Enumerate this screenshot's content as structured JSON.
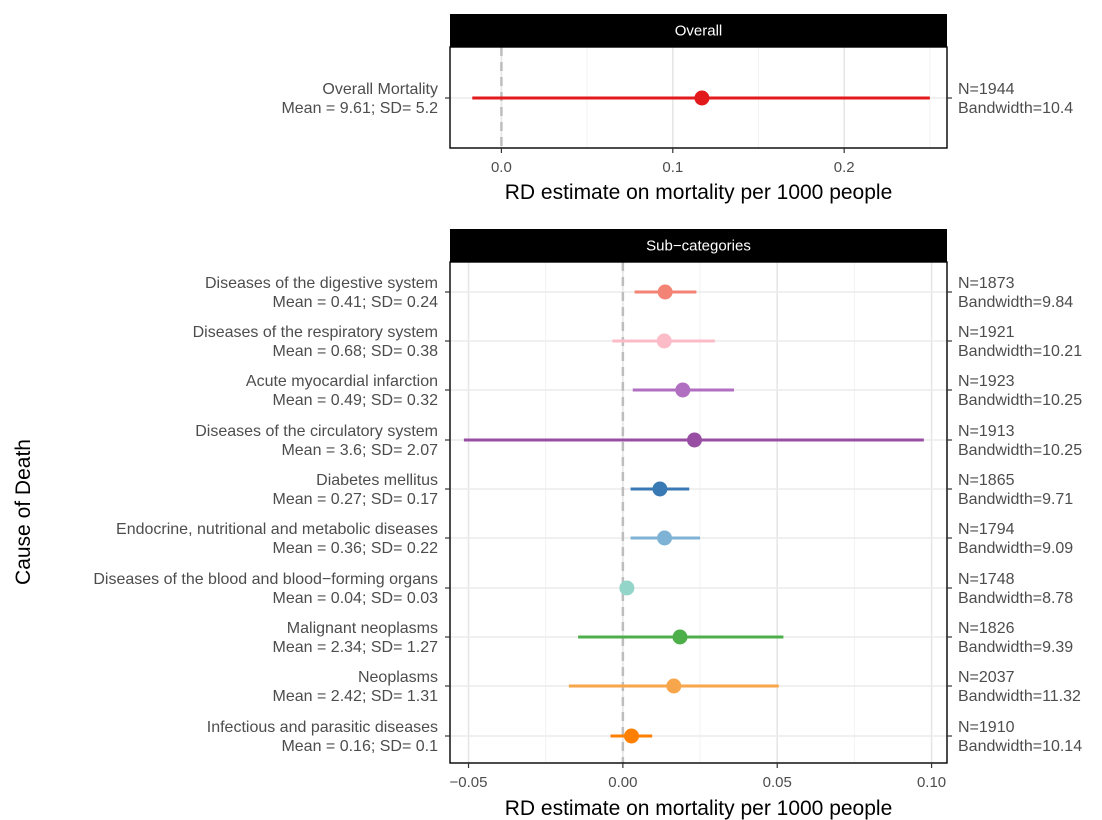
{
  "chart_data": [
    {
      "type": "scatter",
      "panel_strip": "Overall",
      "xlabel": "RD estimate on mortality per 1000 people",
      "xlim": [
        -0.03,
        0.26
      ],
      "xticks": [
        0.0,
        0.1,
        0.2
      ],
      "tick_labels": [
        "0.0",
        "0.1",
        "0.2"
      ],
      "reference_line": 0,
      "grid": true,
      "rows": [
        {
          "label": "Overall Mortality",
          "stats": "Mean = 9.61; SD= 5.2",
          "estimate": 0.117,
          "ci_low": -0.017,
          "ci_high": 0.25,
          "color": "#e31a1c",
          "n": "N=1944",
          "bandwidth": "Bandwidth=10.4"
        }
      ]
    },
    {
      "type": "scatter",
      "panel_strip": "Sub−categories",
      "ylabel": "Cause of Death",
      "xlabel": "RD estimate on mortality per 1000 people",
      "xlim": [
        -0.056,
        0.105
      ],
      "xticks": [
        -0.05,
        0.0,
        0.05,
        0.1
      ],
      "tick_labels": [
        "−0.05",
        "0.00",
        "0.05",
        "0.10"
      ],
      "reference_line": 0,
      "grid": true,
      "rows": [
        {
          "label": "Diseases of the digestive system",
          "stats": "Mean = 0.41; SD= 0.24",
          "estimate": 0.0137,
          "ci_low": 0.0038,
          "ci_high": 0.0238,
          "color": "#f38375",
          "n": "N=1873",
          "bandwidth": "Bandwidth=9.84"
        },
        {
          "label": "Diseases of the respiratory system",
          "stats": "Mean = 0.68; SD= 0.38",
          "estimate": 0.0134,
          "ci_low": -0.0034,
          "ci_high": 0.0298,
          "color": "#fbbcc7",
          "n": "N=1921",
          "bandwidth": "Bandwidth=10.21"
        },
        {
          "label": "Acute myocardial infarction",
          "stats": "Mean = 0.49; SD= 0.32",
          "estimate": 0.0194,
          "ci_low": 0.0032,
          "ci_high": 0.036,
          "color": "#b06fc0",
          "n": "N=1923",
          "bandwidth": "Bandwidth=10.25"
        },
        {
          "label": "Diseases of the circulatory system",
          "stats": "Mean = 3.6; SD= 2.07",
          "estimate": 0.0232,
          "ci_low": -0.0515,
          "ci_high": 0.0975,
          "color": "#984ea3",
          "n": "N=1913",
          "bandwidth": "Bandwidth=10.25"
        },
        {
          "label": "Diabetes mellitus",
          "stats": "Mean = 0.27; SD= 0.17",
          "estimate": 0.012,
          "ci_low": 0.0025,
          "ci_high": 0.0215,
          "color": "#3a7ab4",
          "n": "N=1865",
          "bandwidth": "Bandwidth=9.71"
        },
        {
          "label": "Endocrine, nutritional and metabolic diseases",
          "stats": "Mean = 0.36; SD= 0.22",
          "estimate": 0.0135,
          "ci_low": 0.0025,
          "ci_high": 0.025,
          "color": "#7fb3d5",
          "n": "N=1794",
          "bandwidth": "Bandwidth=9.09"
        },
        {
          "label": "Diseases of the blood and blood−forming organs",
          "stats": "Mean = 0.04; SD= 0.03",
          "estimate": 0.0013,
          "ci_low": 0.0005,
          "ci_high": 0.002,
          "color": "#93d5c9",
          "n": "N=1748",
          "bandwidth": "Bandwidth=8.78"
        },
        {
          "label": "Malignant neoplasms",
          "stats": "Mean = 2.34; SD= 1.27",
          "estimate": 0.0185,
          "ci_low": -0.0145,
          "ci_high": 0.052,
          "color": "#4daf4a",
          "n": "N=1826",
          "bandwidth": "Bandwidth=9.39"
        },
        {
          "label": "Neoplasms",
          "stats": "Mean = 2.42; SD= 1.31",
          "estimate": 0.0165,
          "ci_low": -0.0175,
          "ci_high": 0.0505,
          "color": "#f8a64b",
          "n": "N=2037",
          "bandwidth": "Bandwidth=11.32"
        },
        {
          "label": "Infectious and parasitic diseases",
          "stats": "Mean = 0.16; SD= 0.1",
          "estimate": 0.0028,
          "ci_low": -0.004,
          "ci_high": 0.0095,
          "color": "#ff7f00",
          "n": "N=1910",
          "bandwidth": "Bandwidth=10.14"
        }
      ]
    }
  ]
}
